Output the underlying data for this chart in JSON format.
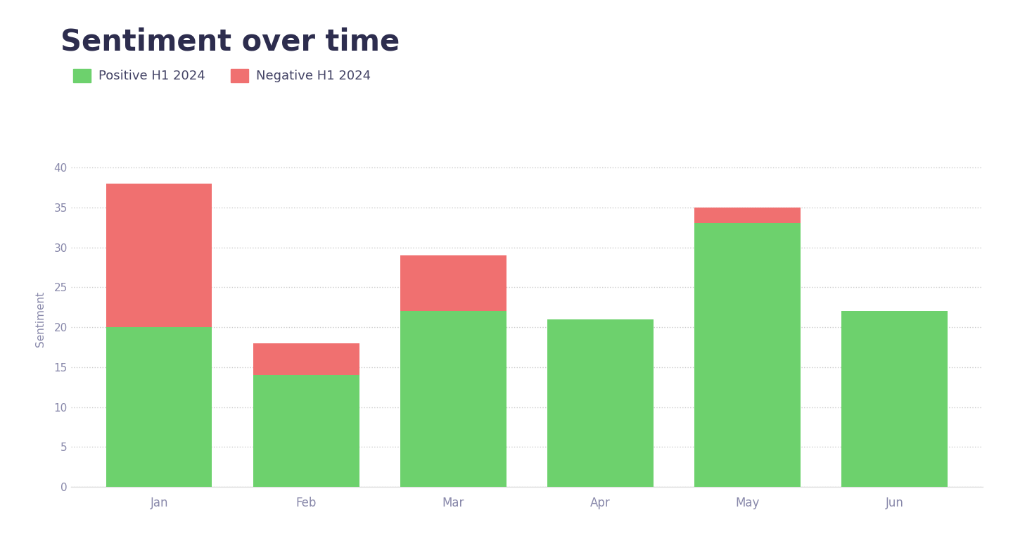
{
  "title": "Sentiment over time",
  "title_color": "#2d2d4e",
  "title_fontsize": 30,
  "title_fontweight": "bold",
  "categories": [
    "Jan",
    "Feb",
    "Mar",
    "Apr",
    "May",
    "Jun"
  ],
  "positive_values": [
    20,
    14,
    22,
    21,
    33,
    22
  ],
  "negative_values": [
    18,
    4,
    7,
    0,
    2,
    0
  ],
  "positive_color": "#6dd16d",
  "negative_color": "#f07070",
  "ylabel": "Sentiment",
  "ylim": [
    0,
    42
  ],
  "yticks": [
    0,
    5,
    10,
    15,
    20,
    25,
    30,
    35,
    40
  ],
  "background_color": "#ffffff",
  "grid_color": "#cccccc",
  "legend_positive": "Positive H1 2024",
  "legend_negative": "Negative H1 2024",
  "bar_width": 0.72,
  "tick_color": "#8888aa",
  "label_color": "#8888aa",
  "ylabel_color": "#8888aa",
  "ylabel_fontsize": 11,
  "legend_text_color": "#444466"
}
